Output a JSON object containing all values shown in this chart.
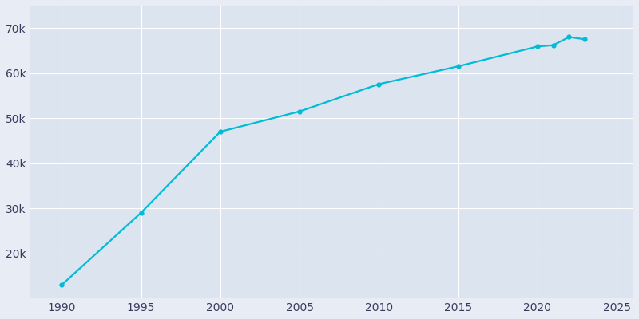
{
  "years": [
    1990,
    1995,
    2000,
    2005,
    2010,
    2015,
    2020,
    2021,
    2022,
    2023
  ],
  "population": [
    13002,
    29000,
    47000,
    51500,
    57551,
    61500,
    65900,
    66200,
    68000,
    67500
  ],
  "line_color": "#00bcd4",
  "marker_style": "o",
  "marker_size": 3.5,
  "line_width": 1.6,
  "background_color": "#e8edf5",
  "axes_background": "#dce4f0",
  "grid_color": "#ffffff",
  "tick_label_color": "#3a3a5c",
  "xlim": [
    1988,
    2026
  ],
  "ylim": [
    10000,
    75000
  ],
  "yticks": [
    20000,
    30000,
    40000,
    50000,
    60000,
    70000
  ],
  "xticks": [
    1990,
    1995,
    2000,
    2005,
    2010,
    2015,
    2020,
    2025
  ],
  "figsize": [
    8.0,
    4.0
  ],
  "dpi": 100
}
